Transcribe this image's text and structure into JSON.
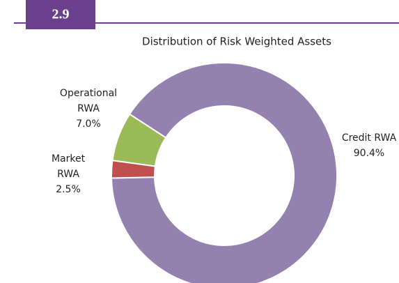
{
  "chart_data": {
    "type": "donut",
    "figure_number": "2.9",
    "title": "Distribution of Risk Weighted Assets",
    "categories": [
      "Credit RWA",
      "Market RWA",
      "Operational RWA"
    ],
    "values": [
      90.4,
      2.5,
      7.0
    ],
    "value_labels": [
      "90.4%",
      "2.5%",
      "7.0%"
    ],
    "colors": [
      "#9581b0",
      "#c0504d",
      "#9bbb59"
    ]
  }
}
